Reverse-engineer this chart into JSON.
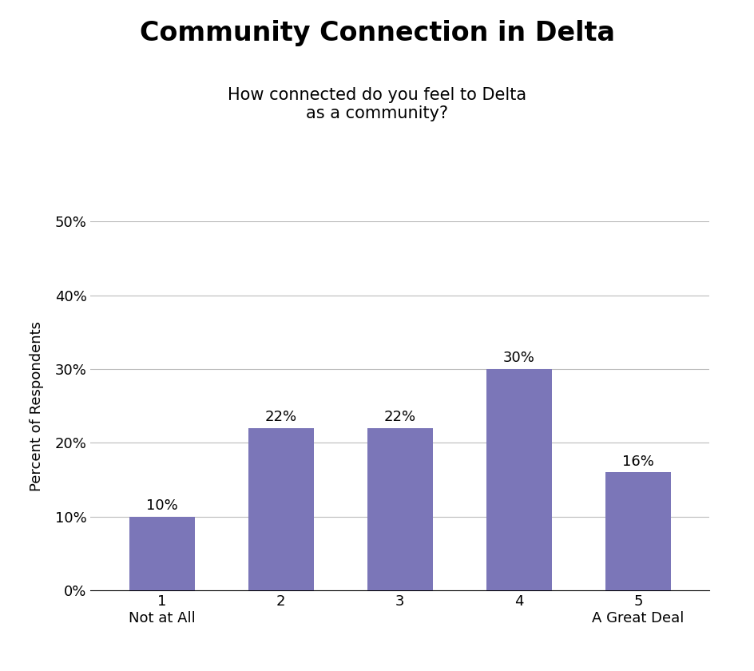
{
  "title": "Community Connection in Delta",
  "subtitle": "How connected do you feel to Delta\nas a community?",
  "categories": [
    "1\nNot at All",
    "2",
    "3",
    "4",
    "5\nA Great Deal"
  ],
  "values": [
    10,
    22,
    22,
    30,
    16
  ],
  "bar_color": "#7B76B8",
  "ylabel": "Percent of Respondents",
  "ylim": [
    0,
    50
  ],
  "yticks": [
    0,
    10,
    20,
    30,
    40,
    50
  ],
  "title_fontsize": 24,
  "subtitle_fontsize": 15,
  "ylabel_fontsize": 13,
  "tick_fontsize": 13,
  "label_fontsize": 13,
  "background_color": "#ffffff",
  "grid_color": "#bbbbbb"
}
